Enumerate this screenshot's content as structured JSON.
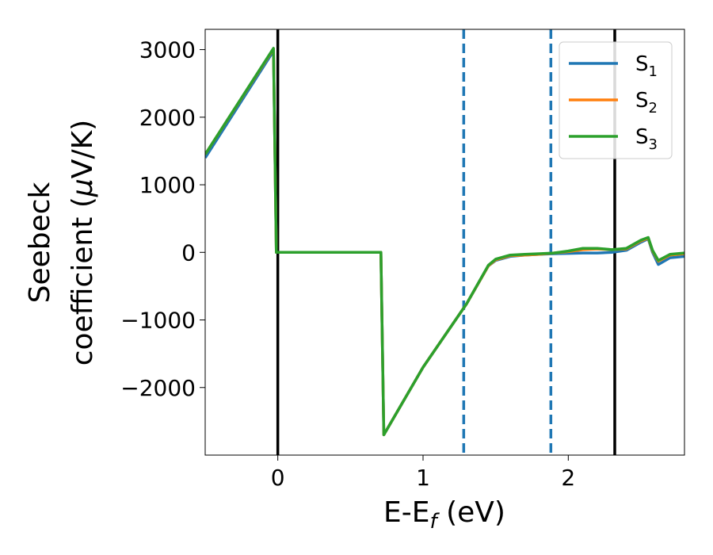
{
  "chart_data": {
    "type": "line",
    "title": "",
    "xlabel": "E-E",
    "xlabel_sub": "f",
    "xlabel_unit": " (eV)",
    "ylabel_line1": "Seebeck",
    "ylabel_line2": "coefficient  (",
    "ylabel_mu": "μ",
    "ylabel_unit_end": "V/K)",
    "xlim": [
      -0.5,
      2.8
    ],
    "ylim": [
      -3000,
      3300
    ],
    "xticks": [
      0,
      1,
      2
    ],
    "xtick_labels": [
      "0",
      "1",
      "2"
    ],
    "yticks": [
      -2000,
      -1000,
      0,
      1000,
      2000,
      3000
    ],
    "ytick_labels": [
      "−2000",
      "−1000",
      "0",
      "1000",
      "2000",
      "3000"
    ],
    "grid": false,
    "legend_position": "top-right",
    "series": [
      {
        "name": "S",
        "sub": "1",
        "color": "#1f77b4",
        "x": [
          -0.5,
          -0.03,
          -0.01,
          0.71,
          0.73,
          1.0,
          1.3,
          1.45,
          1.5,
          1.6,
          1.7,
          1.8,
          1.9,
          2.0,
          2.1,
          2.2,
          2.3,
          2.4,
          2.5,
          2.55,
          2.58,
          2.62,
          2.7,
          2.8
        ],
        "y": [
          1400,
          2980,
          0,
          0,
          -2700,
          -1700,
          -760,
          -200,
          -120,
          -60,
          -40,
          -30,
          -20,
          -15,
          -10,
          -10,
          0,
          30,
          150,
          200,
          0,
          -180,
          -80,
          -60
        ]
      },
      {
        "name": "S",
        "sub": "2",
        "color": "#ff7f0e",
        "x": [
          -0.5,
          -0.03,
          -0.01,
          0.71,
          0.73,
          1.0,
          1.3,
          1.45,
          1.5,
          1.6,
          1.7,
          1.8,
          1.9,
          2.0,
          2.1,
          2.2,
          2.3,
          2.4,
          2.5,
          2.55,
          2.58,
          2.62,
          2.7,
          2.8
        ],
        "y": [
          1450,
          3010,
          0,
          0,
          -2700,
          -1700,
          -760,
          -200,
          -110,
          -50,
          -40,
          -30,
          -10,
          10,
          40,
          50,
          40,
          50,
          170,
          210,
          20,
          -130,
          -40,
          -20
        ]
      },
      {
        "name": "S",
        "sub": "3",
        "color": "#2ca02c",
        "x": [
          -0.5,
          -0.03,
          -0.01,
          0.71,
          0.73,
          1.0,
          1.3,
          1.45,
          1.5,
          1.6,
          1.7,
          1.8,
          1.9,
          2.0,
          2.1,
          2.2,
          2.3,
          2.4,
          2.5,
          2.55,
          2.58,
          2.62,
          2.7,
          2.8
        ],
        "y": [
          1450,
          3020,
          0,
          0,
          -2700,
          -1700,
          -760,
          -190,
          -100,
          -40,
          -30,
          -20,
          -10,
          20,
          60,
          60,
          40,
          60,
          180,
          220,
          30,
          -120,
          -30,
          -10
        ]
      }
    ],
    "vlines": [
      {
        "x": 0.0,
        "style": "solid",
        "color": "#000000"
      },
      {
        "x": 2.32,
        "style": "solid",
        "color": "#000000"
      },
      {
        "x": 1.28,
        "style": "dashed",
        "color": "#1f77b4"
      },
      {
        "x": 1.88,
        "style": "dashed",
        "color": "#1f77b4"
      }
    ]
  }
}
